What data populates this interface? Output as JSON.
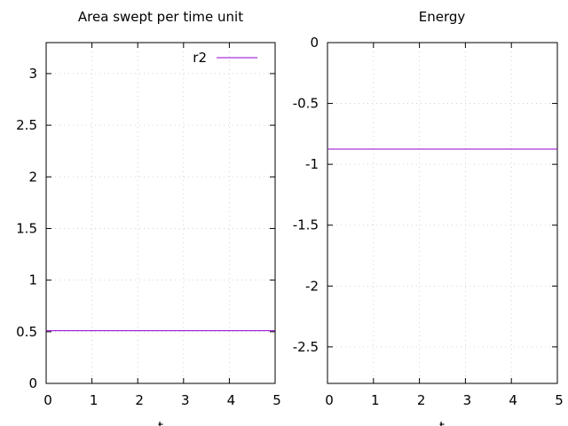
{
  "chart_data": [
    {
      "type": "line",
      "title": "Area swept per time unit",
      "xlabel": "t",
      "ylabel": "",
      "xlim": [
        0,
        5
      ],
      "ylim": [
        0,
        3.3
      ],
      "xticks": [
        0,
        1,
        2,
        3,
        4,
        5
      ],
      "yticks": [
        0,
        0.5,
        1,
        1.5,
        2,
        2.5,
        3
      ],
      "grid": true,
      "legend": "top-right",
      "series": [
        {
          "name": "r2",
          "color": "#9400d3",
          "x": [
            0,
            5
          ],
          "y": [
            0.51,
            0.51
          ]
        }
      ]
    },
    {
      "type": "line",
      "title": "Energy",
      "xlabel": "t",
      "ylabel": "",
      "xlim": [
        0,
        5
      ],
      "ylim": [
        -2.8,
        0
      ],
      "xticks": [
        0,
        1,
        2,
        3,
        4,
        5
      ],
      "yticks": [
        0,
        -0.5,
        -1,
        -1.5,
        -2,
        -2.5
      ],
      "grid": true,
      "legend": "none",
      "series": [
        {
          "name": "",
          "color": "#9400d3",
          "x": [
            0,
            5
          ],
          "y": [
            -0.875,
            -0.875
          ]
        }
      ]
    }
  ]
}
